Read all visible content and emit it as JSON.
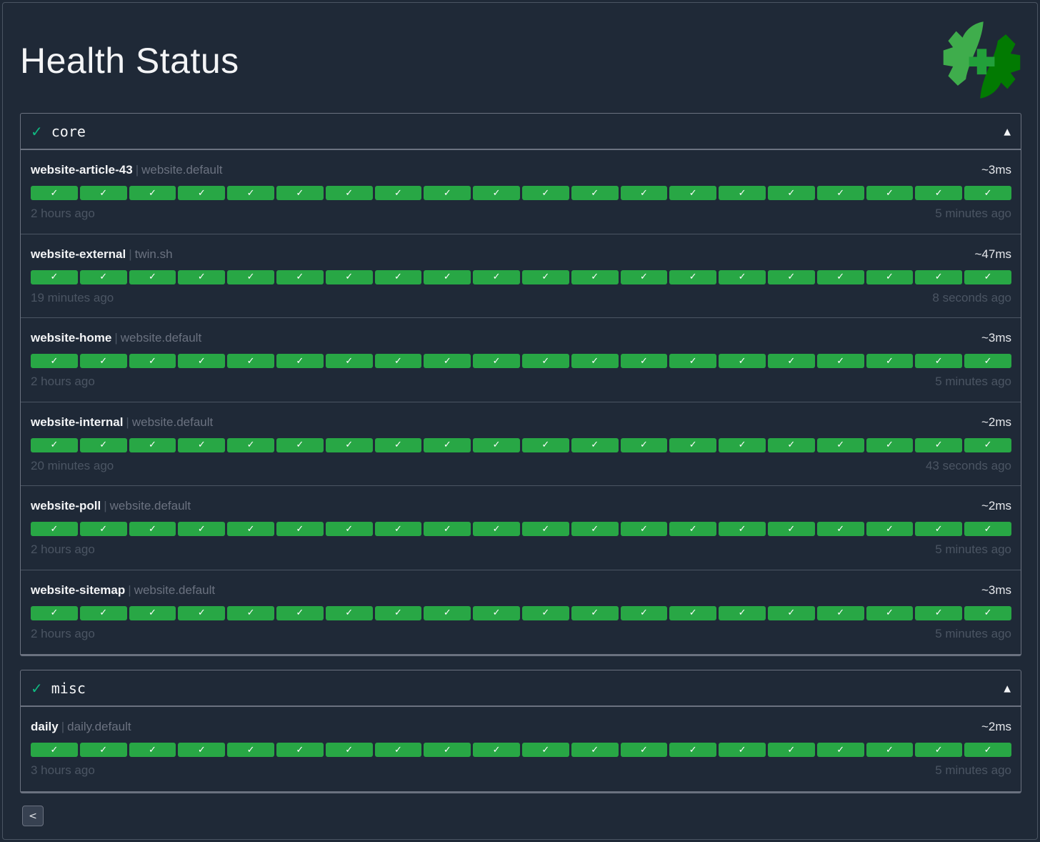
{
  "title": "Health Status",
  "colors": {
    "success": "#28a745",
    "healthy_icon": "#10b981",
    "background": "#1f2937"
  },
  "groups": [
    {
      "name": "core",
      "status_icon": "✓",
      "toggle_icon": "▲",
      "endpoints": [
        {
          "name": "website-article-43",
          "group": "website.default",
          "response_time": "~3ms",
          "oldest": "2 hours ago",
          "newest": "5 minutes ago",
          "results": [
            "success",
            "success",
            "success",
            "success",
            "success",
            "success",
            "success",
            "success",
            "success",
            "success",
            "success",
            "success",
            "success",
            "success",
            "success",
            "success",
            "success",
            "success",
            "success",
            "success"
          ]
        },
        {
          "name": "website-external",
          "group": "twin.sh",
          "response_time": "~47ms",
          "oldest": "19 minutes ago",
          "newest": "8 seconds ago",
          "results": [
            "success",
            "success",
            "success",
            "success",
            "success",
            "success",
            "success",
            "success",
            "success",
            "success",
            "success",
            "success",
            "success",
            "success",
            "success",
            "success",
            "success",
            "success",
            "success",
            "success"
          ]
        },
        {
          "name": "website-home",
          "group": "website.default",
          "response_time": "~3ms",
          "oldest": "2 hours ago",
          "newest": "5 minutes ago",
          "results": [
            "success",
            "success",
            "success",
            "success",
            "success",
            "success",
            "success",
            "success",
            "success",
            "success",
            "success",
            "success",
            "success",
            "success",
            "success",
            "success",
            "success",
            "success",
            "success",
            "success"
          ]
        },
        {
          "name": "website-internal",
          "group": "website.default",
          "response_time": "~2ms",
          "oldest": "20 minutes ago",
          "newest": "43 seconds ago",
          "results": [
            "success",
            "success",
            "success",
            "success",
            "success",
            "success",
            "success",
            "success",
            "success",
            "success",
            "success",
            "success",
            "success",
            "success",
            "success",
            "success",
            "success",
            "success",
            "success",
            "success"
          ]
        },
        {
          "name": "website-poll",
          "group": "website.default",
          "response_time": "~2ms",
          "oldest": "2 hours ago",
          "newest": "5 minutes ago",
          "results": [
            "success",
            "success",
            "success",
            "success",
            "success",
            "success",
            "success",
            "success",
            "success",
            "success",
            "success",
            "success",
            "success",
            "success",
            "success",
            "success",
            "success",
            "success",
            "success",
            "success"
          ]
        },
        {
          "name": "website-sitemap",
          "group": "website.default",
          "response_time": "~3ms",
          "oldest": "2 hours ago",
          "newest": "5 minutes ago",
          "results": [
            "success",
            "success",
            "success",
            "success",
            "success",
            "success",
            "success",
            "success",
            "success",
            "success",
            "success",
            "success",
            "success",
            "success",
            "success",
            "success",
            "success",
            "success",
            "success",
            "success"
          ]
        }
      ]
    },
    {
      "name": "misc",
      "status_icon": "✓",
      "toggle_icon": "▲",
      "endpoints": [
        {
          "name": "daily",
          "group": "daily.default",
          "response_time": "~2ms",
          "oldest": "3 hours ago",
          "newest": "5 minutes ago",
          "results": [
            "success",
            "success",
            "success",
            "success",
            "success",
            "success",
            "success",
            "success",
            "success",
            "success",
            "success",
            "success",
            "success",
            "success",
            "success",
            "success",
            "success",
            "success",
            "success",
            "success"
          ]
        }
      ]
    }
  ],
  "success_mark": "✓",
  "separator": "|",
  "back_icon": "<"
}
